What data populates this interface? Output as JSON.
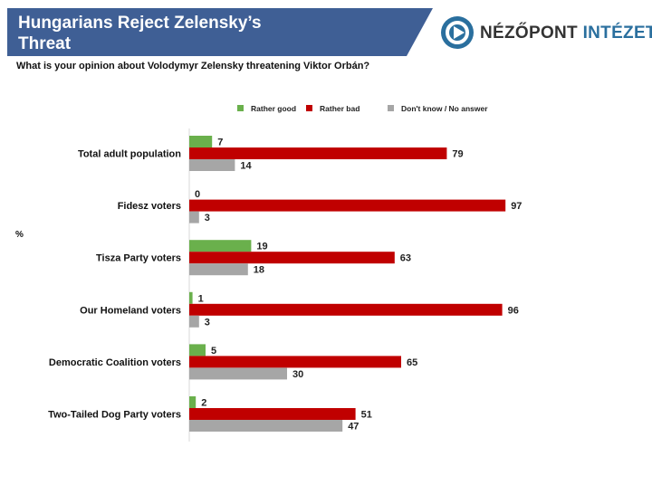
{
  "header": {
    "title_line1": "Hungarians Reject Zelensky’s",
    "title_line2": "Threat",
    "banner_color": "#3f5f95",
    "logo_part1": "NÉZŐPONT",
    "logo_part2": "INTÉZET",
    "logo_color": "#2a6f9e"
  },
  "subtitle": "What is your opinion about Volodymyr Zelensky threatening Viktor Orbán?",
  "percent_label": "%",
  "chart_data": {
    "type": "bar",
    "orientation": "horizontal",
    "title": "Hungarians Reject Zelensky’s Threat",
    "subtitle": "What is your opinion about Volodymyr Zelensky threatening Viktor Orbán?",
    "ylabel": "%",
    "xlabel": "",
    "xlim": [
      0,
      100
    ],
    "legend_position": "top-center",
    "categories": [
      "Total adult population",
      "Fidesz voters",
      "Tisza Party voters",
      "Our Homeland voters",
      "Democratic Coalition voters",
      "Two-Tailed Dog Party voters"
    ],
    "series": [
      {
        "name": "Rather good",
        "color": "#6ab04c",
        "values": [
          7,
          0,
          19,
          1,
          5,
          2
        ]
      },
      {
        "name": "Rather bad",
        "color": "#c00000",
        "values": [
          79,
          97,
          63,
          96,
          65,
          51
        ]
      },
      {
        "name": "Don't know / No answer",
        "color": "#a6a6a6",
        "values": [
          14,
          3,
          18,
          3,
          30,
          47
        ]
      }
    ]
  }
}
